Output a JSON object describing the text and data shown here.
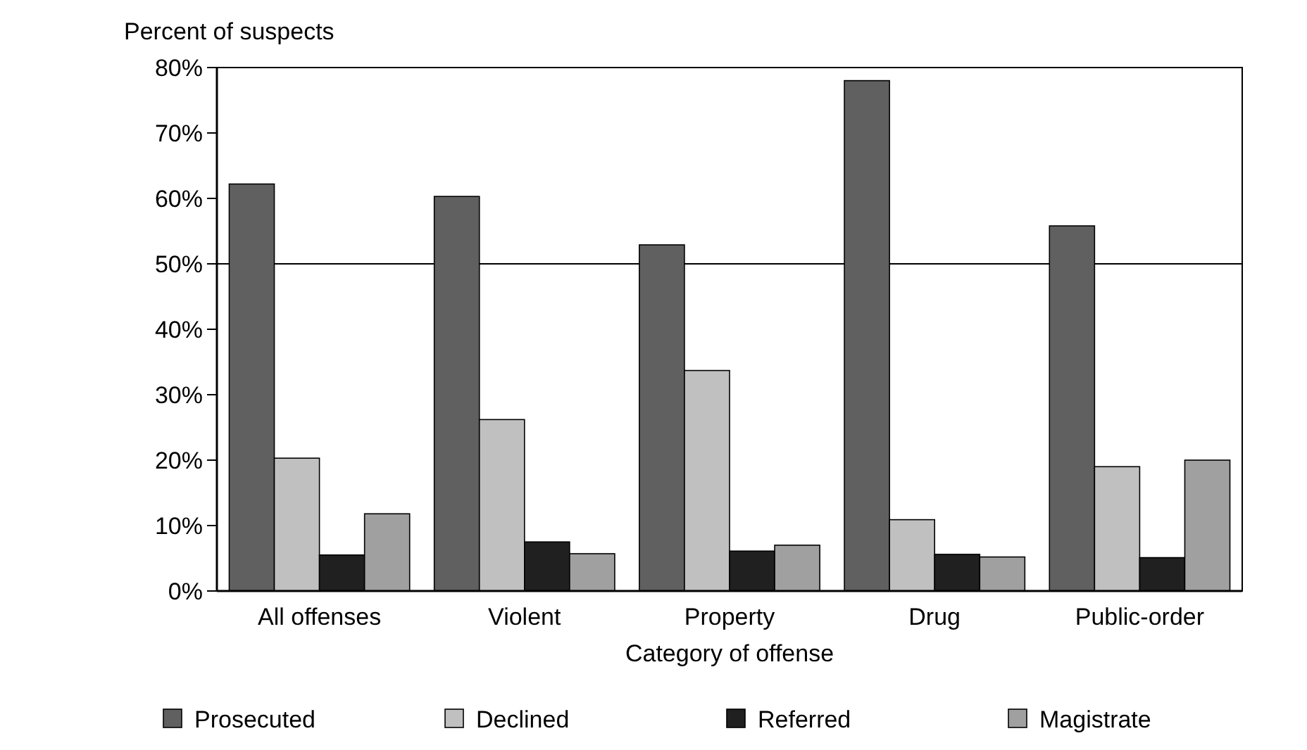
{
  "chart_data": {
    "type": "bar",
    "ylabel": "Percent of suspects",
    "xlabel": "Category of offense",
    "categories": [
      "All offenses",
      "Violent",
      "Property",
      "Drug",
      "Public-order"
    ],
    "series": [
      {
        "name": "Prosecuted",
        "color": "#606060",
        "values": [
          62.2,
          60.3,
          52.9,
          78.0,
          55.8
        ]
      },
      {
        "name": "Declined",
        "color": "#c0c0c0",
        "values": [
          20.3,
          26.2,
          33.7,
          10.9,
          19.0
        ]
      },
      {
        "name": "Referred",
        "color": "#202020",
        "values": [
          5.5,
          7.5,
          6.1,
          5.6,
          5.1
        ]
      },
      {
        "name": "Magistrate",
        "color": "#a0a0a0",
        "values": [
          11.8,
          5.7,
          7.0,
          5.2,
          20.0
        ]
      }
    ],
    "ylim": [
      0,
      80
    ],
    "yticks": [
      {
        "value": 0,
        "label": "0%"
      },
      {
        "value": 10,
        "label": "10%"
      },
      {
        "value": 20,
        "label": "20%"
      },
      {
        "value": 30,
        "label": "30%"
      },
      {
        "value": 40,
        "label": "40%"
      },
      {
        "value": 50,
        "label": "50%"
      },
      {
        "value": 60,
        "label": "60%"
      },
      {
        "value": 70,
        "label": "70%"
      },
      {
        "value": 80,
        "label": "80%"
      }
    ],
    "ref_lines": [
      {
        "axis": "y",
        "value": 50,
        "color": "#000000"
      }
    ],
    "grid": false,
    "legend": "bottom"
  }
}
